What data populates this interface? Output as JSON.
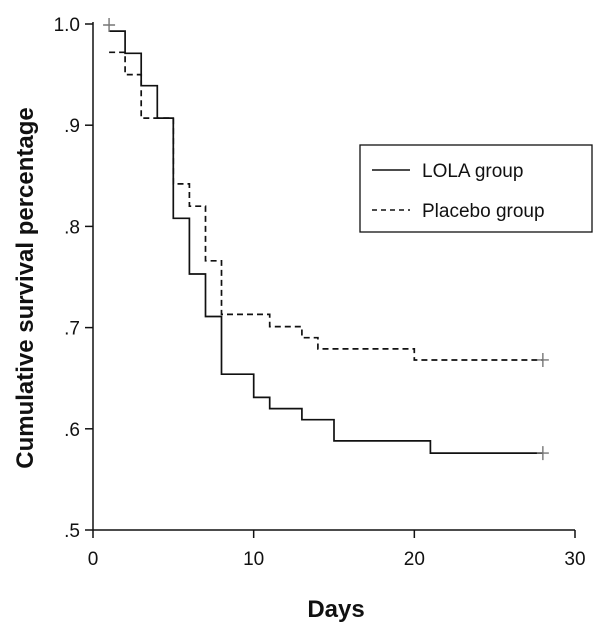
{
  "chart_data": {
    "type": "line",
    "subtype": "step",
    "title": "",
    "xlabel": "Days",
    "ylabel": "Cumulative survival percentage",
    "xlim": [
      0,
      30
    ],
    "ylim": [
      0.5,
      1.0
    ],
    "x_ticks": [
      0,
      10,
      20,
      30
    ],
    "x_tick_labels": [
      "0",
      "10",
      "20",
      "30"
    ],
    "y_ticks": [
      0.5,
      0.6,
      0.7,
      0.8,
      0.9,
      1.0
    ],
    "y_tick_labels": [
      ".5",
      ".6",
      ".7",
      ".8",
      ".9",
      "1.0"
    ],
    "grid": false,
    "legend_position": "right",
    "series": [
      {
        "name": "LOLA group",
        "style": "solid",
        "color": "#111111",
        "points": [
          [
            1,
            0.993
          ],
          [
            2,
            0.993
          ],
          [
            2,
            0.971
          ],
          [
            3,
            0.971
          ],
          [
            3,
            0.939
          ],
          [
            4,
            0.939
          ],
          [
            4,
            0.907
          ],
          [
            5,
            0.907
          ],
          [
            5,
            0.808
          ],
          [
            6,
            0.808
          ],
          [
            6,
            0.753
          ],
          [
            7,
            0.753
          ],
          [
            7,
            0.711
          ],
          [
            8,
            0.711
          ],
          [
            8,
            0.654
          ],
          [
            10,
            0.654
          ],
          [
            10,
            0.631
          ],
          [
            11,
            0.631
          ],
          [
            11,
            0.62
          ],
          [
            13,
            0.62
          ],
          [
            13,
            0.609
          ],
          [
            15,
            0.609
          ],
          [
            15,
            0.588
          ],
          [
            21,
            0.588
          ],
          [
            21,
            0.576
          ],
          [
            28,
            0.576
          ]
        ],
        "censored": [
          [
            1,
            0.999
          ],
          [
            28,
            0.576
          ]
        ]
      },
      {
        "name": "Placebo group",
        "style": "dashed",
        "color": "#111111",
        "points": [
          [
            1,
            0.972
          ],
          [
            2,
            0.972
          ],
          [
            2,
            0.95
          ],
          [
            3,
            0.95
          ],
          [
            3,
            0.907
          ],
          [
            5,
            0.907
          ],
          [
            5,
            0.842
          ],
          [
            6,
            0.842
          ],
          [
            6,
            0.82
          ],
          [
            7,
            0.82
          ],
          [
            7,
            0.766
          ],
          [
            8,
            0.766
          ],
          [
            8,
            0.713
          ],
          [
            11,
            0.713
          ],
          [
            11,
            0.701
          ],
          [
            13,
            0.701
          ],
          [
            13,
            0.69
          ],
          [
            14,
            0.69
          ],
          [
            14,
            0.679
          ],
          [
            20,
            0.679
          ],
          [
            20,
            0.668
          ],
          [
            28,
            0.668
          ]
        ],
        "censored": [
          [
            28,
            0.668
          ]
        ]
      }
    ]
  }
}
